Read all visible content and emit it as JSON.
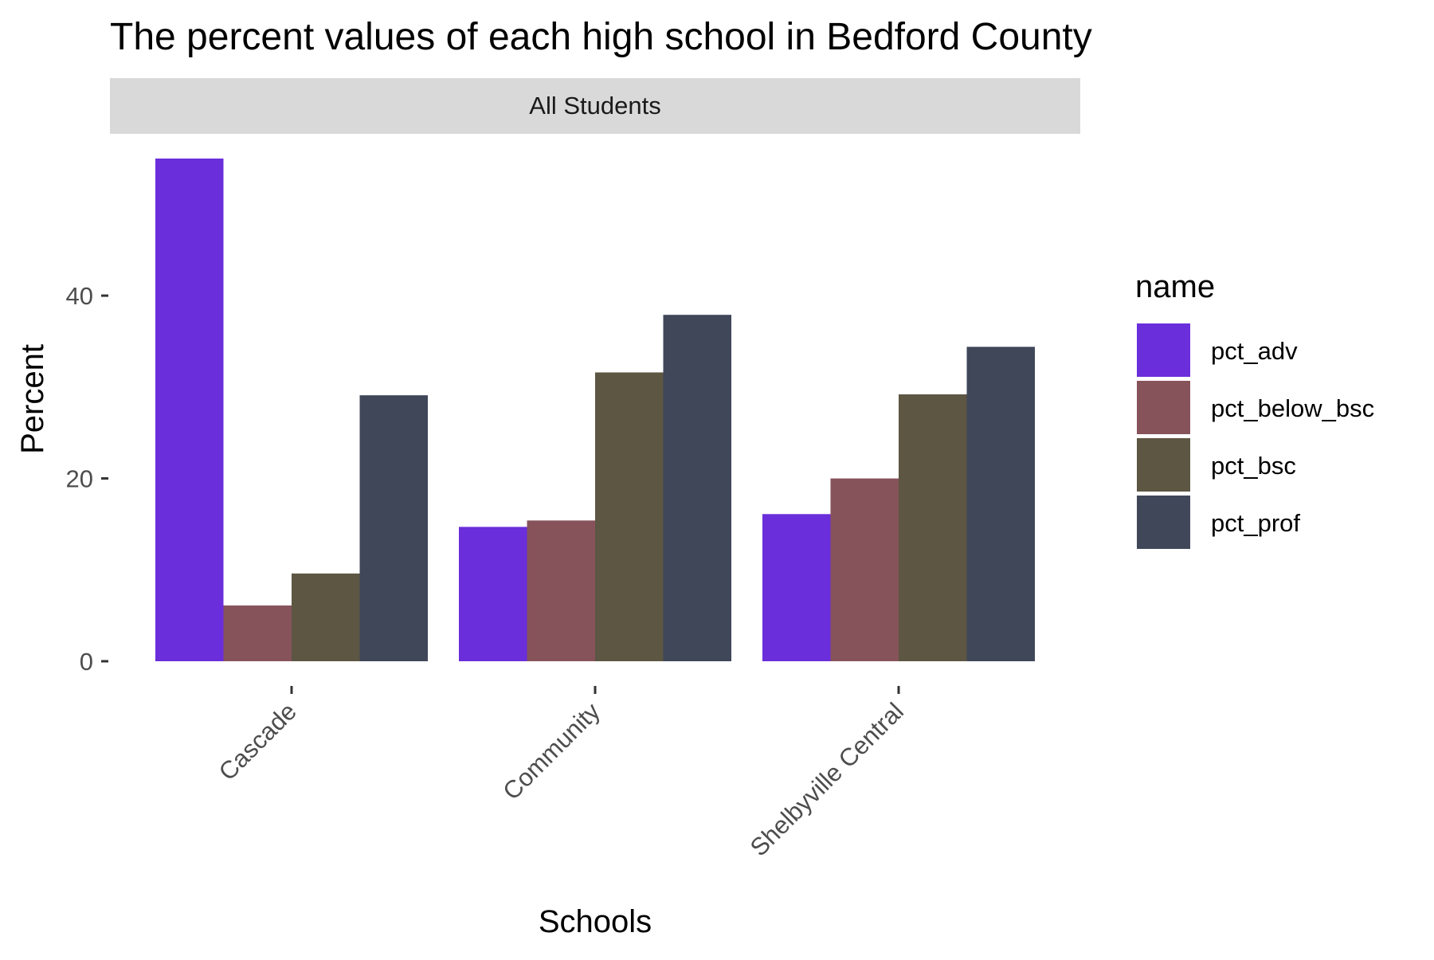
{
  "chart_data": {
    "type": "bar",
    "title": "The percent values of each high school in Bedford County",
    "facet_label": "All Students",
    "xlabel": "Schools",
    "ylabel": "Percent",
    "categories": [
      "Cascade",
      "Community",
      "Shelbyville Central"
    ],
    "series": [
      {
        "name": "pct_adv",
        "color": "#6A2EDB",
        "values": [
          55.0,
          14.7,
          16.1
        ]
      },
      {
        "name": "pct_below_bsc",
        "color": "#87535B",
        "values": [
          6.1,
          15.4,
          20.0
        ]
      },
      {
        "name": "pct_bsc",
        "color": "#5C5643",
        "values": [
          9.6,
          31.6,
          29.2
        ]
      },
      {
        "name": "pct_prof",
        "color": "#3F4759",
        "values": [
          29.1,
          37.9,
          34.4
        ]
      }
    ],
    "ylim": [
      0,
      55
    ],
    "yticks": [
      0,
      20,
      40
    ],
    "legend": {
      "title": "name",
      "position": "right"
    },
    "grid": false,
    "x_tick_rotation": "45deg"
  }
}
